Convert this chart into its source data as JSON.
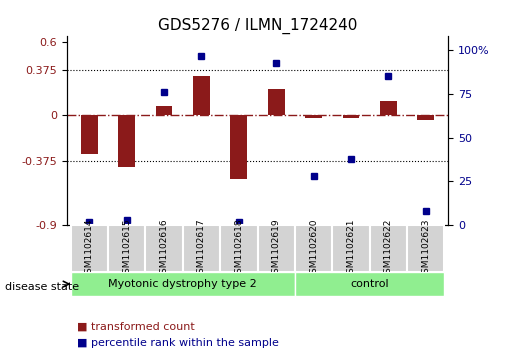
{
  "title": "GDS5276 / ILMN_1724240",
  "samples": [
    "GSM1102614",
    "GSM1102615",
    "GSM1102616",
    "GSM1102617",
    "GSM1102618",
    "GSM1102619",
    "GSM1102620",
    "GSM1102621",
    "GSM1102622",
    "GSM1102623"
  ],
  "transformed_count": [
    -0.32,
    -0.42,
    0.08,
    0.32,
    -0.52,
    0.22,
    -0.02,
    -0.02,
    0.12,
    -0.04
  ],
  "percentile_rank": [
    2,
    3,
    76,
    97,
    2,
    93,
    28,
    38,
    85,
    8
  ],
  "disease_groups": [
    {
      "label": "Myotonic dystrophy type 2",
      "start": 0,
      "end": 5,
      "color": "#90EE90"
    },
    {
      "label": "control",
      "start": 6,
      "end": 9,
      "color": "#90EE90"
    }
  ],
  "bar_color": "#8B1A1A",
  "dot_color": "#00008B",
  "left_ylim": [
    -0.9,
    0.65
  ],
  "right_ylim": [
    0,
    108
  ],
  "left_yticks": [
    -0.9,
    -0.375,
    0,
    0.375,
    0.6
  ],
  "right_yticks": [
    0,
    25,
    50,
    75,
    100
  ],
  "right_yticklabels": [
    "0",
    "25",
    "50",
    "75",
    "100%"
  ],
  "hline_color": "#8B1A1A",
  "dotted_lines": [
    -0.375,
    0.375
  ],
  "background_color": "#ffffff",
  "disease_state_label": "disease state",
  "legend_items": [
    {
      "label": "transformed count",
      "color": "#8B1A1A",
      "marker": "s"
    },
    {
      "label": "percentile rank within the sample",
      "color": "#00008B",
      "marker": "s"
    }
  ]
}
